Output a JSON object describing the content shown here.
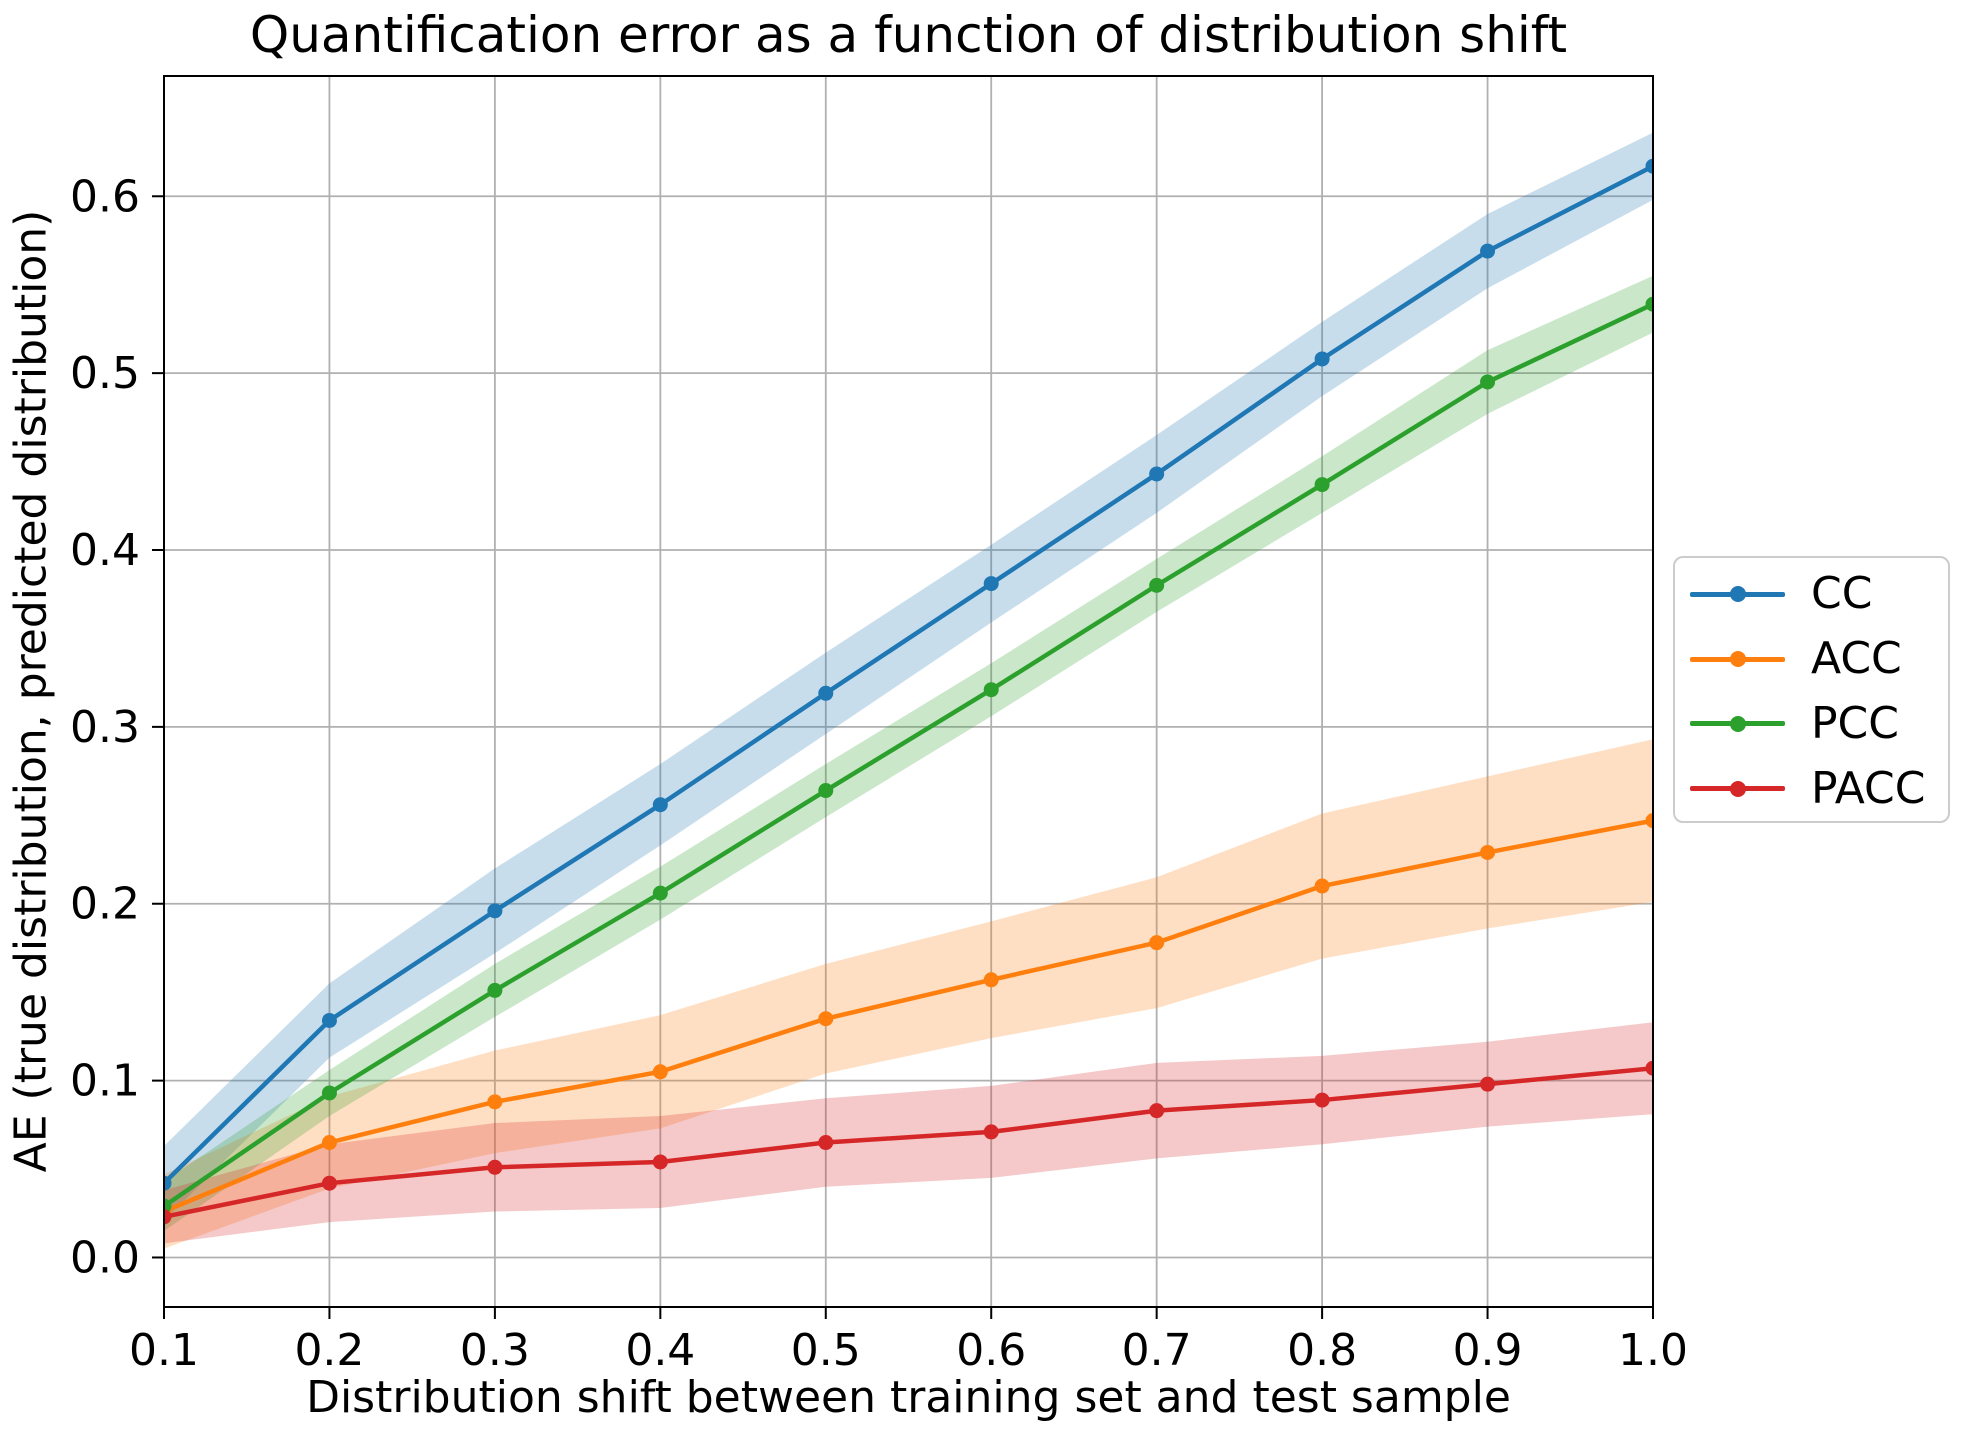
{
  "chart_data": {
    "type": "line",
    "title": "Quantification error as a function of distribution shift",
    "xlabel": "Distribution shift between training set and test sample",
    "ylabel": "AE (true distribution, predicted distribution)",
    "grid": true,
    "legend_position": "right-outside",
    "xlim": [
      0.1,
      1.0
    ],
    "ylim": [
      -0.028,
      0.668
    ],
    "x_ticks": [
      0.1,
      0.2,
      0.3,
      0.4,
      0.5,
      0.6,
      0.7,
      0.8,
      0.9,
      1.0
    ],
    "x_tick_labels": [
      "0.1",
      "0.2",
      "0.3",
      "0.4",
      "0.5",
      "0.6",
      "0.7",
      "0.8",
      "0.9",
      "1.0"
    ],
    "y_ticks": [
      0.0,
      0.1,
      0.2,
      0.3,
      0.4,
      0.5,
      0.6
    ],
    "y_tick_labels": [
      "0.0",
      "0.1",
      "0.2",
      "0.3",
      "0.4",
      "0.5",
      "0.6"
    ],
    "x": [
      0.1,
      0.2,
      0.3,
      0.4,
      0.5,
      0.6,
      0.7,
      0.8,
      0.9,
      1.0
    ],
    "series": [
      {
        "name": "CC",
        "color": "#1f77b4",
        "values": [
          0.042,
          0.134,
          0.196,
          0.256,
          0.319,
          0.381,
          0.443,
          0.508,
          0.569,
          0.617
        ],
        "band_halfwidth": [
          0.021,
          0.021,
          0.024,
          0.023,
          0.023,
          0.022,
          0.022,
          0.021,
          0.021,
          0.019
        ]
      },
      {
        "name": "ACC",
        "color": "#ff7f0e",
        "values": [
          0.026,
          0.065,
          0.088,
          0.105,
          0.135,
          0.157,
          0.178,
          0.21,
          0.229,
          0.247
        ],
        "band_halfwidth": [
          0.021,
          0.026,
          0.029,
          0.032,
          0.031,
          0.033,
          0.037,
          0.041,
          0.043,
          0.046
        ]
      },
      {
        "name": "PCC",
        "color": "#2ca02c",
        "values": [
          0.029,
          0.093,
          0.151,
          0.206,
          0.264,
          0.321,
          0.38,
          0.437,
          0.495,
          0.539
        ],
        "band_halfwidth": [
          0.014,
          0.013,
          0.015,
          0.015,
          0.015,
          0.015,
          0.015,
          0.016,
          0.018,
          0.016
        ]
      },
      {
        "name": "PACC",
        "color": "#d62728",
        "values": [
          0.023,
          0.042,
          0.051,
          0.054,
          0.065,
          0.071,
          0.083,
          0.089,
          0.098,
          0.107
        ],
        "band_halfwidth": [
          0.015,
          0.022,
          0.025,
          0.026,
          0.025,
          0.026,
          0.027,
          0.025,
          0.024,
          0.026
        ]
      }
    ],
    "style": {
      "grid_color": "#b0b0b0",
      "spine_color": "#000000",
      "band_alpha": 0.25,
      "line_width": 4.5,
      "marker_radius": 7.5
    }
  }
}
